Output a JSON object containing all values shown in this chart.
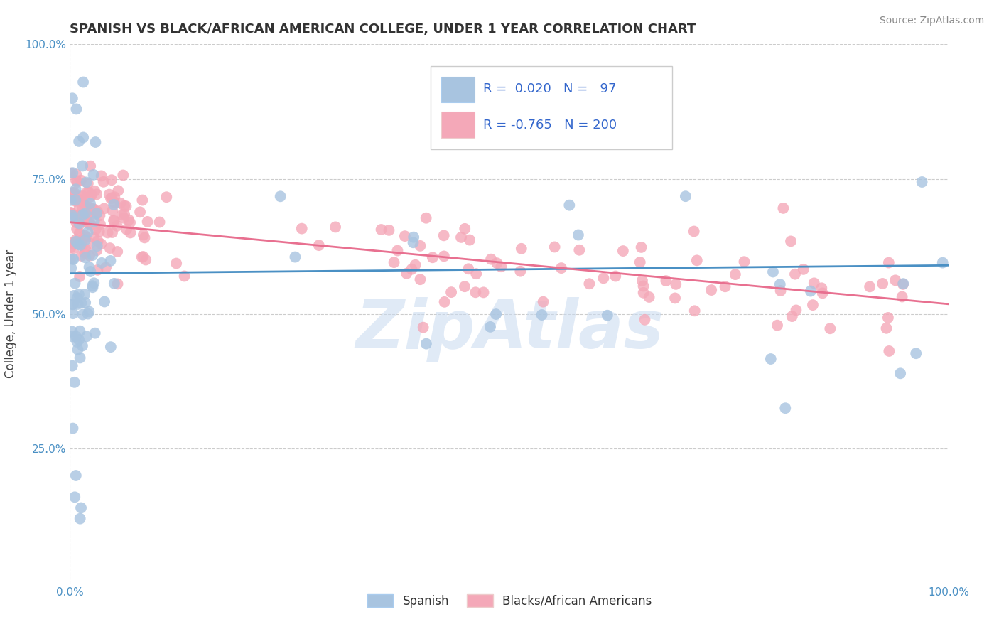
{
  "title": "SPANISH VS BLACK/AFRICAN AMERICAN COLLEGE, UNDER 1 YEAR CORRELATION CHART",
  "source": "Source: ZipAtlas.com",
  "ylabel": "College, Under 1 year",
  "xlim": [
    0,
    1
  ],
  "ylim": [
    0,
    1
  ],
  "yticks": [
    0.0,
    0.25,
    0.5,
    0.75,
    1.0
  ],
  "ytick_labels": [
    "",
    "25.0%",
    "50.0%",
    "75.0%",
    "100.0%"
  ],
  "xticks": [
    0,
    1
  ],
  "xtick_labels": [
    "0.0%",
    "100.0%"
  ],
  "blue_R": 0.02,
  "blue_N": 97,
  "pink_R": -0.765,
  "pink_N": 200,
  "legend_label1": "Spanish",
  "legend_label2": "Blacks/African Americans",
  "scatter_blue_color": "#a8c4e0",
  "scatter_pink_color": "#f4a8b8",
  "line_blue_color": "#4a90c4",
  "line_pink_color": "#e87090",
  "watermark": "ZipAtlas",
  "watermark_color": "#c8daf0",
  "background_color": "#ffffff",
  "grid_color": "#cccccc",
  "title_color": "#333333",
  "legend_text_color": "#3366cc",
  "tick_color": "#4a90c4"
}
